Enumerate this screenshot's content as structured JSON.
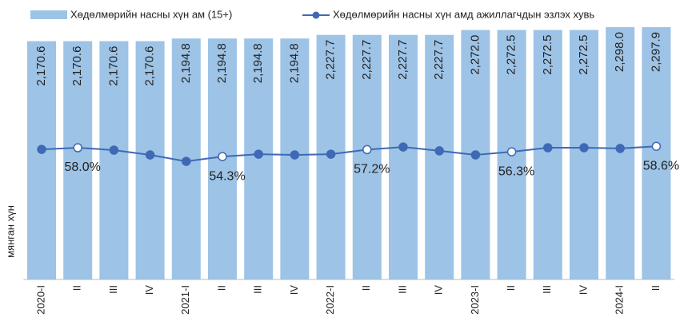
{
  "chart_data": {
    "type": "bar_line",
    "y_axis_label": "мянган хүн",
    "categories": [
      "2020-I",
      "II",
      "III",
      "IV",
      "2021-I",
      "II",
      "III",
      "IV",
      "2022-I",
      "II",
      "III",
      "IV",
      "2023-I",
      "II",
      "III",
      "IV",
      "2024-I",
      "II"
    ],
    "series": [
      {
        "name": "Хөдөлмөрийн насны хүн ам (15+)",
        "type": "bar",
        "color": "#9dc3e6",
        "values": [
          2170.6,
          2170.6,
          2170.6,
          2170.6,
          2194.8,
          2194.8,
          2194.8,
          2194.8,
          2227.7,
          2227.7,
          2227.7,
          2227.7,
          2272.0,
          2272.5,
          2272.5,
          2272.5,
          2298.0,
          2297.9
        ],
        "value_labels": [
          "2,170.6",
          "2,170.6",
          "2,170.6",
          "2,170.6",
          "2,194.8",
          "2,194.8",
          "2,194.8",
          "2,194.8",
          "2,227.7",
          "2,227.7",
          "2,227.7",
          "2,227.7",
          "2,272.0",
          "2,272.5",
          "2,272.5",
          "2,272.5",
          "2,298.0",
          "2,297.9"
        ]
      },
      {
        "name": "Хөдөлмөрийн насны хүн амд ажиллагчдын эзлэх хувь",
        "type": "line",
        "axis": "y2",
        "color": "#3f69b5",
        "values": [
          57.3,
          58.0,
          57.0,
          55.0,
          52.3,
          54.3,
          55.3,
          55.0,
          55.3,
          57.2,
          58.3,
          56.7,
          55.0,
          56.3,
          58.0,
          58.0,
          57.7,
          58.6
        ],
        "value_labels": [
          null,
          "58.0%",
          null,
          null,
          null,
          "54.3%",
          null,
          null,
          null,
          "57.2%",
          null,
          null,
          null,
          "56.3%",
          null,
          null,
          null,
          "58.6%"
        ]
      }
    ],
    "ylim": [
      0,
      2400
    ],
    "y2lim": [
      3,
      113
    ],
    "grid": false,
    "legend": "top"
  }
}
